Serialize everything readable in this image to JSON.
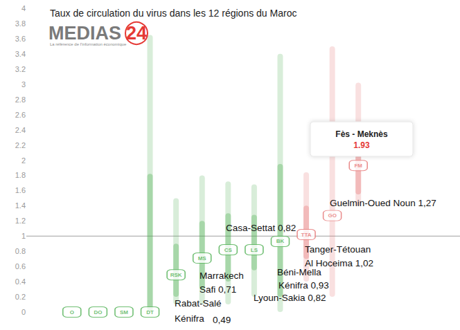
{
  "chart_data": {
    "type": "range",
    "title": "Taux de circulation du virus dans les 12 régions du Maroc",
    "logo": {
      "name": "MEDIAS",
      "number": "24",
      "tagline": "La référence de l'information économique"
    },
    "categories": [
      "O",
      "DO",
      "SM",
      "DT",
      "RSK",
      "MS",
      "CS",
      "LS",
      "BK",
      "TTA",
      "GO",
      "FM"
    ],
    "values": [
      0,
      0,
      0,
      0,
      0.49,
      0.71,
      0.82,
      0.82,
      0.93,
      1.02,
      1.27,
      1.93
    ],
    "range_low": [
      null,
      null,
      null,
      0,
      0.1,
      0.1,
      0.1,
      0.2,
      0,
      0.4,
      0.2,
      1.4
    ],
    "range_high": [
      null,
      null,
      null,
      3.65,
      1.5,
      1.8,
      1.72,
      1.68,
      3.4,
      1.84,
      3.5,
      3.02
    ],
    "inner_low": [
      null,
      null,
      null,
      0,
      0.2,
      0.3,
      0.4,
      0.55,
      0.2,
      0.7,
      null,
      1.55
    ],
    "inner_high": [
      null,
      null,
      null,
      1.82,
      0.9,
      1.2,
      1.3,
      1.28,
      1.95,
      1.4,
      null,
      2.2
    ],
    "colors": [
      "#4caf50",
      "#4caf50",
      "#4caf50",
      "#4caf50",
      "#4caf50",
      "#4caf50",
      "#4caf50",
      "#4caf50",
      "#4caf50",
      "#e57373",
      "#e57373",
      "#e57373"
    ],
    "threshold": 1,
    "tooltip": {
      "title": "Fès - Meknès",
      "value": 1.93
    },
    "annotations": [
      "Guelmin-Oued Noun 1,27",
      "Casa-Settat 0,82",
      "Tanger-Tétouan",
      "Al Hoceima 1,02",
      "Marrakech",
      "Safi 0,71",
      "Béni-Mella",
      "Kénifra 0,93",
      "Lyoun-Sakia 0,82",
      "Rabat-Salé",
      "Kénifra",
      "0,49"
    ],
    "ylim": [
      0,
      4
    ],
    "yticks": [
      0,
      0.2,
      0.4,
      0.6,
      0.8,
      1,
      1.2,
      1.4,
      1.6,
      1.8,
      2,
      2.2,
      2.4,
      2.6,
      2.8,
      3,
      3.2,
      3.4,
      3.6,
      3.8,
      4
    ],
    "grid": false,
    "tick_labels": "y"
  }
}
